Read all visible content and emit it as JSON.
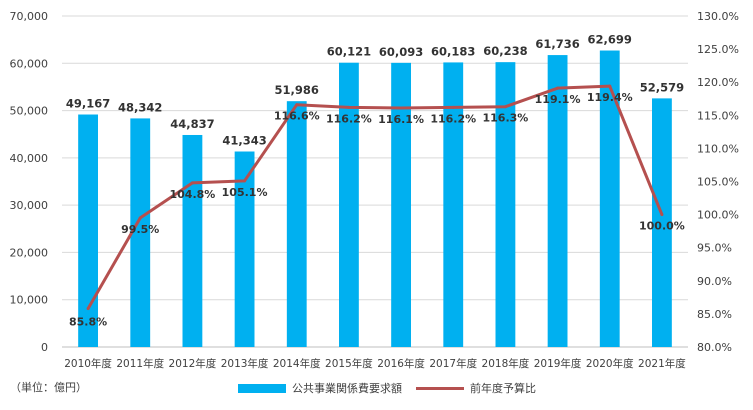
{
  "unit_note": "（単位：億円）",
  "colors": {
    "bar": "#00B0F0",
    "line": "#B5504F",
    "grid": "#D9D9D9"
  },
  "legend": {
    "bar_label": "公共事業関係費要求額",
    "line_label": "前年度予算比"
  },
  "chart_data": {
    "type": "bar",
    "categories": [
      "2010年度",
      "2011年度",
      "2012年度",
      "2013年度",
      "2014年度",
      "2015年度",
      "2016年度",
      "2017年度",
      "2018年度",
      "2019年度",
      "2020年度",
      "2021年度"
    ],
    "series": [
      {
        "name": "公共事業関係費要求額",
        "type": "bar",
        "axis": "left",
        "values": [
          49167,
          48342,
          44837,
          41343,
          51986,
          60121,
          60093,
          60183,
          60238,
          61736,
          62699,
          52579
        ],
        "labels": [
          "49,167",
          "48,342",
          "44,837",
          "41,343",
          "51,986",
          "60,121",
          "60,093",
          "60,183",
          "60,238",
          "61,736",
          "62,699",
          "52,579"
        ]
      },
      {
        "name": "前年度予算比",
        "type": "line",
        "axis": "right",
        "values": [
          85.8,
          99.5,
          104.8,
          105.1,
          116.6,
          116.2,
          116.1,
          116.2,
          116.3,
          119.1,
          119.4,
          100.0
        ],
        "labels": [
          "85.8%",
          "99.5%",
          "104.8%",
          "105.1%",
          "116.6%",
          "116.2%",
          "116.1%",
          "116.2%",
          "116.3%",
          "119.1%",
          "119.4%",
          "100.0%"
        ]
      }
    ],
    "y_left": {
      "range": [
        0,
        70000
      ],
      "ticks": [
        "0",
        "10,000",
        "20,000",
        "30,000",
        "40,000",
        "50,000",
        "60,000",
        "70,000"
      ]
    },
    "y_right": {
      "range": [
        80,
        130
      ],
      "ticks": [
        "80.0%",
        "85.0%",
        "90.0%",
        "95.0%",
        "100.0%",
        "105.0%",
        "110.0%",
        "115.0%",
        "120.0%",
        "125.0%",
        "130.0%"
      ]
    },
    "grid": true,
    "legend_position": "bottom"
  }
}
